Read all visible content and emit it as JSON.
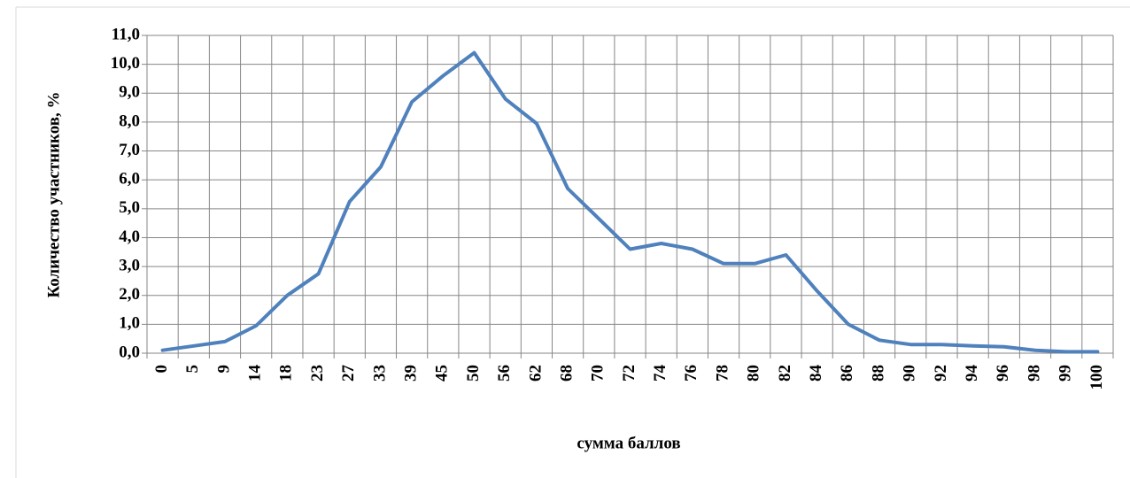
{
  "chart_data": {
    "type": "line",
    "y_label": "Количество участников, %",
    "x_label": "сумма баллов",
    "categories": [
      "0",
      "5",
      "9",
      "14",
      "18",
      "23",
      "27",
      "33",
      "39",
      "45",
      "50",
      "56",
      "62",
      "68",
      "70",
      "72",
      "74",
      "76",
      "78",
      "80",
      "82",
      "84",
      "86",
      "88",
      "90",
      "92",
      "94",
      "96",
      "98",
      "99",
      "100"
    ],
    "series": [
      {
        "color": "#4f81bd",
        "values": [
          0.1,
          0.25,
          0.4,
          0.95,
          2.0,
          2.75,
          5.25,
          6.45,
          8.7,
          9.6,
          10.4,
          8.8,
          7.95,
          5.7,
          4.65,
          3.6,
          3.8,
          3.6,
          3.1,
          3.1,
          3.4,
          2.15,
          1.0,
          0.45,
          0.3,
          0.3,
          0.25,
          0.22,
          0.1,
          0.05,
          0.05
        ]
      }
    ],
    "ylim": [
      0,
      11
    ],
    "yticks": [
      {
        "value": 0,
        "label": "0,0"
      },
      {
        "value": 1,
        "label": "1,0"
      },
      {
        "value": 2,
        "label": "2,0"
      },
      {
        "value": 3,
        "label": "3,0"
      },
      {
        "value": 4,
        "label": "4,0"
      },
      {
        "value": 5,
        "label": "5,0"
      },
      {
        "value": 6,
        "label": "6,0"
      },
      {
        "value": 7,
        "label": "7,0"
      },
      {
        "value": 8,
        "label": "8,0"
      },
      {
        "value": 9,
        "label": "9,0"
      },
      {
        "value": 10,
        "label": "10,0"
      },
      {
        "value": 11,
        "label": "11,0"
      }
    ],
    "grid": true
  }
}
